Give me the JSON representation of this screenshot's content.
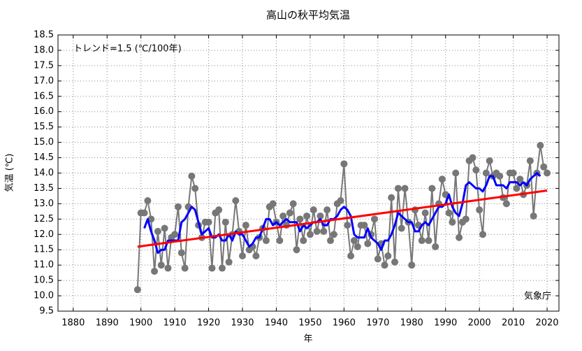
{
  "chart_data": {
    "type": "line",
    "title": "高山の秋平均気温",
    "annotation": "トレンド=1.5 (℃/100年)",
    "source": "気象庁",
    "x_label": "年",
    "y_label": "気温 (℃)",
    "x": [
      1899,
      1900,
      1901,
      1902,
      1903,
      1904,
      1905,
      1906,
      1907,
      1908,
      1909,
      1910,
      1911,
      1912,
      1913,
      1914,
      1915,
      1916,
      1917,
      1918,
      1919,
      1920,
      1921,
      1922,
      1923,
      1924,
      1925,
      1926,
      1927,
      1928,
      1929,
      1930,
      1931,
      1932,
      1933,
      1934,
      1935,
      1936,
      1937,
      1938,
      1939,
      1940,
      1941,
      1942,
      1943,
      1944,
      1945,
      1946,
      1947,
      1948,
      1949,
      1950,
      1951,
      1952,
      1953,
      1954,
      1955,
      1956,
      1957,
      1958,
      1959,
      1960,
      1961,
      1962,
      1963,
      1964,
      1965,
      1966,
      1967,
      1968,
      1969,
      1970,
      1971,
      1972,
      1973,
      1974,
      1975,
      1976,
      1977,
      1978,
      1979,
      1980,
      1981,
      1982,
      1983,
      1984,
      1985,
      1986,
      1987,
      1988,
      1989,
      1990,
      1991,
      1992,
      1993,
      1994,
      1995,
      1996,
      1997,
      1998,
      1999,
      2000,
      2001,
      2002,
      2003,
      2004,
      2005,
      2006,
      2007,
      2008,
      2009,
      2010,
      2011,
      2012,
      2013,
      2014,
      2015,
      2016,
      2017,
      2018,
      2019,
      2020
    ],
    "series": [
      {
        "color": "#777777",
        "markers": true,
        "values": [
          10.2,
          12.7,
          12.7,
          13.1,
          12.5,
          10.8,
          12.1,
          11.0,
          12.2,
          10.9,
          11.9,
          12.0,
          12.9,
          11.4,
          10.9,
          12.9,
          13.9,
          13.5,
          12.3,
          11.9,
          12.4,
          12.4,
          10.9,
          12.7,
          12.8,
          10.9,
          12.4,
          11.1,
          12.0,
          13.1,
          12.1,
          11.3,
          12.3,
          11.5,
          11.6,
          11.3,
          11.9,
          12.2,
          11.8,
          12.9,
          13.0,
          12.4,
          11.8,
          12.6,
          12.3,
          12.7,
          13.0,
          11.5,
          12.5,
          11.8,
          12.6,
          12.0,
          12.8,
          12.1,
          12.6,
          12.1,
          12.8,
          11.8,
          12.0,
          13.0,
          13.1,
          14.3,
          12.3,
          11.3,
          11.8,
          11.6,
          12.3,
          12.3,
          11.7,
          12.0,
          12.5,
          11.2,
          11.7,
          11.0,
          11.3,
          13.2,
          11.1,
          13.5,
          12.2,
          13.5,
          12.4,
          11.0,
          12.8,
          12.3,
          11.8,
          12.7,
          11.8,
          13.5,
          11.6,
          13.0,
          13.8,
          13.3,
          12.7,
          12.4,
          14.0,
          11.9,
          12.4,
          12.5,
          14.4,
          14.5,
          14.1,
          12.8,
          12.0,
          14.0,
          14.4,
          13.9,
          14.0,
          13.9,
          13.2,
          13.0,
          14.0,
          14.0,
          13.5,
          13.8,
          13.3,
          13.6,
          14.4,
          12.6,
          14.0,
          14.9,
          14.2,
          14.0
        ]
      },
      {
        "color": "#0000ff",
        "markers": false,
        "values": [
          null,
          null,
          12.2,
          12.5,
          12.1,
          11.8,
          11.4,
          11.5,
          11.5,
          11.8,
          11.8,
          11.8,
          11.8,
          12.4,
          12.5,
          12.7,
          12.9,
          12.8,
          12.4,
          12.0,
          12.1,
          12.2,
          11.9,
          11.9,
          12.0,
          11.8,
          11.8,
          12.0,
          11.8,
          12.1,
          12.0,
          12.0,
          11.8,
          11.6,
          11.7,
          11.9,
          11.9,
          12.2,
          12.5,
          12.5,
          12.3,
          12.4,
          12.3,
          12.4,
          12.5,
          12.4,
          12.4,
          12.4,
          12.1,
          12.3,
          12.2,
          12.3,
          12.4,
          12.4,
          12.5,
          12.3,
          12.3,
          12.5,
          12.5,
          12.6,
          12.8,
          12.9,
          12.8,
          12.6,
          12.0,
          11.9,
          11.9,
          11.9,
          12.2,
          11.9,
          11.8,
          11.7,
          11.5,
          11.8,
          11.8,
          12.0,
          12.3,
          12.7,
          12.6,
          12.5,
          12.4,
          12.4,
          12.1,
          12.1,
          12.3,
          12.4,
          12.3,
          12.5,
          12.7,
          12.9,
          12.9,
          13.0,
          13.3,
          12.9,
          12.7,
          12.6,
          13.0,
          13.6,
          13.7,
          13.6,
          13.5,
          13.5,
          13.4,
          13.6,
          13.9,
          13.9,
          13.6,
          13.6,
          13.6,
          13.5,
          13.7,
          13.7,
          13.7,
          13.6,
          13.7,
          13.6,
          13.8,
          13.9,
          14.0,
          13.9,
          null,
          null
        ]
      }
    ],
    "trend": {
      "color": "#ff0000",
      "x": [
        1899,
        2020
      ],
      "values": [
        11.6,
        13.43
      ]
    },
    "xlim": [
      1875.5,
      2023.5
    ],
    "xticks": [
      1880,
      1890,
      1900,
      1910,
      1920,
      1930,
      1940,
      1950,
      1960,
      1970,
      1980,
      1990,
      2000,
      2010,
      2020
    ],
    "ylim": [
      9.5,
      18.5
    ],
    "yticks": [
      9.5,
      {
        "value": 10,
        "label": "10.0"
      },
      10.5,
      {
        "value": 11,
        "label": "11.0"
      },
      11.5,
      {
        "value": 12,
        "label": "12.0"
      },
      12.5,
      {
        "value": 13,
        "label": "13.0"
      },
      13.5,
      {
        "value": 14,
        "label": "14.0"
      },
      14.5,
      {
        "value": 15,
        "label": "15.0"
      },
      15.5,
      {
        "value": 16,
        "label": "16.0"
      },
      16.5,
      {
        "value": 17,
        "label": "17.0"
      },
      17.5,
      {
        "value": 18,
        "label": "18.0"
      },
      18.5
    ],
    "grid": true
  }
}
